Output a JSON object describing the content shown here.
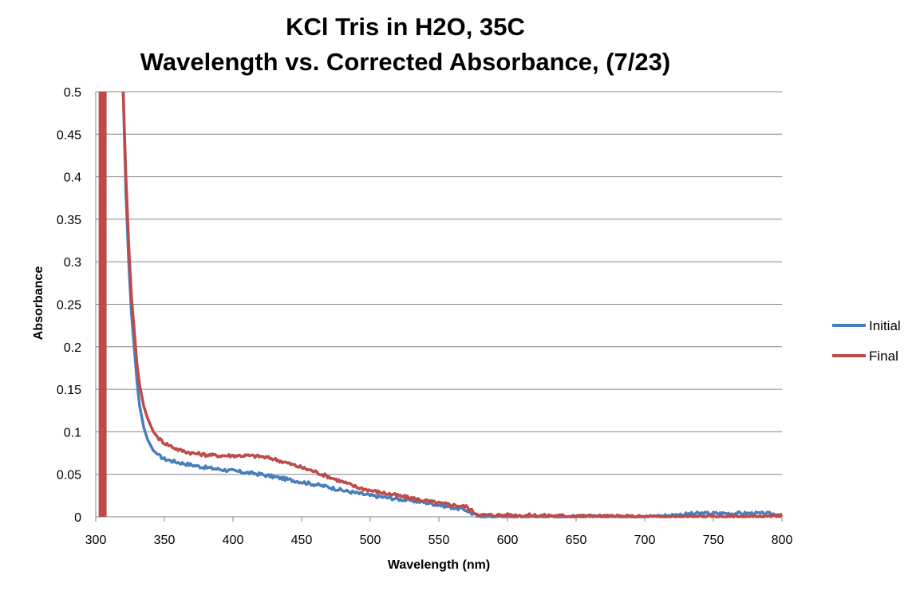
{
  "chart_data": {
    "type": "line",
    "title": "KCl Tris in H2O, 35C",
    "subtitle": "Wavelength vs. Corrected Absorbance, (7/23)",
    "xlabel": "Wavelength (nm)",
    "ylabel": "Absorbance",
    "xlim": [
      300,
      800
    ],
    "ylim": [
      0,
      0.5
    ],
    "x_ticks": [
      "300",
      "350",
      "400",
      "450",
      "500",
      "550",
      "600",
      "650",
      "700",
      "750",
      "800"
    ],
    "y_ticks": [
      "0",
      "0.05",
      "0.1",
      "0.15",
      "0.2",
      "0.25",
      "0.3",
      "0.35",
      "0.4",
      "0.45",
      "0.5"
    ],
    "grid": "horizontal",
    "legend_position": "right",
    "series": [
      {
        "name": "Initial",
        "color": "#4a7ebb",
        "x": [
          320,
          322,
          324,
          326,
          328,
          330,
          332,
          335,
          338,
          342,
          346,
          350,
          360,
          370,
          380,
          390,
          400,
          410,
          420,
          430,
          440,
          450,
          460,
          470,
          480,
          490,
          500,
          510,
          520,
          530,
          540,
          550,
          560,
          570,
          575,
          580,
          590,
          600,
          650,
          700,
          720,
          740,
          760,
          780,
          800
        ],
        "y": [
          0.5,
          0.38,
          0.3,
          0.24,
          0.2,
          0.16,
          0.13,
          0.105,
          0.09,
          0.078,
          0.072,
          0.068,
          0.064,
          0.061,
          0.058,
          0.056,
          0.054,
          0.052,
          0.05,
          0.047,
          0.044,
          0.041,
          0.038,
          0.035,
          0.031,
          0.028,
          0.025,
          0.023,
          0.021,
          0.019,
          0.017,
          0.014,
          0.011,
          0.008,
          0.003,
          0.0,
          0.0,
          0.0,
          0.0,
          0.0,
          0.002,
          0.004,
          0.004,
          0.004,
          0.003
        ]
      },
      {
        "name": "Final",
        "color": "#be4b48",
        "x": [
          320,
          322,
          324,
          326,
          328,
          330,
          332,
          335,
          338,
          342,
          346,
          350,
          360,
          370,
          380,
          390,
          400,
          410,
          420,
          430,
          440,
          450,
          460,
          470,
          480,
          490,
          500,
          510,
          520,
          530,
          540,
          550,
          560,
          570,
          575,
          580,
          590,
          600,
          650,
          700,
          720,
          740,
          760,
          780,
          800
        ],
        "y": [
          0.5,
          0.4,
          0.32,
          0.26,
          0.22,
          0.18,
          0.155,
          0.13,
          0.115,
          0.1,
          0.092,
          0.087,
          0.079,
          0.075,
          0.073,
          0.072,
          0.072,
          0.072,
          0.071,
          0.068,
          0.063,
          0.058,
          0.053,
          0.047,
          0.041,
          0.035,
          0.031,
          0.028,
          0.025,
          0.022,
          0.019,
          0.016,
          0.014,
          0.012,
          0.006,
          0.002,
          0.002,
          0.002,
          0.001,
          0.0,
          0.0,
          0.0,
          0.0,
          0.0,
          0.0
        ]
      },
      {
        "name": "",
        "color": "#be4b48",
        "x": [
          305,
          305
        ],
        "y": [
          0,
          0.5
        ],
        "role": "vertical-bar-at-left-edge"
      }
    ]
  }
}
